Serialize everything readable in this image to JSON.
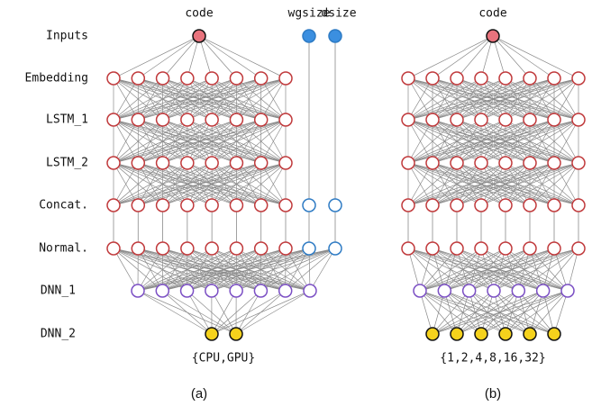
{
  "row_labels": [
    "Inputs",
    "Embedding",
    "LSTM_1",
    "LSTM_2",
    "Concat.",
    "Normal.",
    "DNN_1",
    "DNN_2"
  ],
  "panel_a": {
    "input_label": "code",
    "extra_inputs": [
      "wgsize",
      "dsize"
    ],
    "output_label": "{CPU,GPU}",
    "caption": "(a)"
  },
  "panel_b": {
    "input_label": "code",
    "output_label": "{1,2,4,8,16,32}",
    "caption": "(b)"
  }
}
